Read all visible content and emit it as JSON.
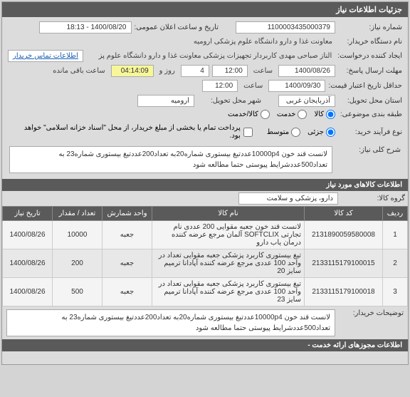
{
  "header": {
    "title": "جزئیات اطلاعات نیاز"
  },
  "form": {
    "need_no_label": "شماره نیاز:",
    "need_no": "1100003435000379",
    "pub_date_label": "تاریخ و ساعت اعلان عمومی:",
    "pub_date": "1400/08/20 - 18:13",
    "org_label": "نام دستگاه خریدار:",
    "org": "معاونت غذا و دارو دانشگاه علوم پزشکی ارومیه",
    "creator_label": "ایجاد کننده درخواست:",
    "creator": "الناز صباحی مهدی کاربردار تجهیزات پزشکی معاونت غذا و دارو دانشگاه علوم پز",
    "contact_link": "اطلاعات تماس خریدار",
    "deadline_label": "مهلت ارسال پاسخ:",
    "deadline_date": "1400/08/26",
    "time_label": "ساعت",
    "deadline_time": "12:00",
    "days": "4",
    "days_label": "روز و",
    "remain": "04:14:09",
    "remain_label": "ساعت باقی مانده",
    "valid_label": "حداقل تاریخ اعتبار قیمت:",
    "valid_date": "1400/09/30",
    "valid_time": "12:00",
    "province_label": "استان محل تحویل:",
    "province": "آذربایجان غربی",
    "city_label": "شهر محل تحویل:",
    "city": "ارومیه",
    "class_label": "طبقه بندی موضوعی:",
    "radio_goods": "کالا",
    "radio_service": "خدمت",
    "radio_goods_service": "کالا/خدمت",
    "process_label": "نوع فرآیند خرید:",
    "radio_partial": "جزئی",
    "radio_medium": "متوسط",
    "checkbox_text": "پرداخت تمام یا بخشی از مبلغ خریدار، از محل \"اسناد خزانه اسلامی\" خواهد بود.",
    "main_desc_label": "شرح کلی نیاز:",
    "main_desc": "لانست قند خون 10000p4عددتیغ بیستوری شماره20به تعداد200عددتیغ بیستوری شماره23 به تعداد500عددشرایط پیوستی حتما مطالعه شود"
  },
  "items": {
    "header": "اطلاعات کالاهای مورد نیاز",
    "group_label": "گروه کالا:",
    "group": "دارو، پزشکی و سلامت",
    "columns": {
      "row": "ردیف",
      "code": "کد کالا",
      "name": "نام کالا",
      "unit": "واحد شمارش",
      "qty": "تعداد / مقدار",
      "date": "تاریخ نیاز"
    },
    "rows": [
      {
        "n": "1",
        "code": "2131890059580008",
        "name": "لانست قند خون جعبه مقوایی 200 عددی نام تجارتی SOFTCLIX آلمان مرجع عرضه کننده درمان یاب دارو",
        "unit": "جعبه",
        "qty": "10000",
        "date": "1400/08/26"
      },
      {
        "n": "2",
        "code": "2133115179100015",
        "name": "تیغ بیستوری کاربرد پزشکی جعبه مقوایی تعداد در واحد 100 عددی مرجع عرضه کننده آپادانا ترمیم سایز 20",
        "unit": "جعبه",
        "qty": "200",
        "date": "1400/08/26"
      },
      {
        "n": "3",
        "code": "2133115179100018",
        "name": "تیغ بیستوری کاربرد پزشکی جعبه مقوایی تعداد در واحد 100 عددی مرجع عرضه کننده آپادانا ترمیم سایز 23",
        "unit": "جعبه",
        "qty": "500",
        "date": "1400/08/26"
      }
    ],
    "buyer_note_label": "توضیحات خریدار:",
    "buyer_note": "لانست قند خون 10000p4عددتیغ بیستوری شماره20به تعداد200عددتیغ بیستوری شماره23 به تعداد500عددشرایط پیوستی حتما مطالعه شود"
  },
  "permits": {
    "header": "اطلاعات مجوزهای ارائه خدمت -"
  }
}
